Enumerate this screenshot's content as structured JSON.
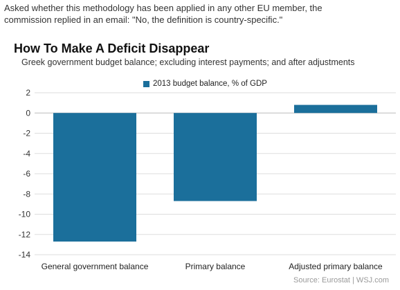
{
  "intro": {
    "line1": "Asked whether this methodology has been applied in any other EU member, the",
    "line2": "commission replied in an email: \"No, the definition is country-specific.\""
  },
  "source": "Source: Eurostat | WSJ.com",
  "colors": {
    "bar": "#1b6f9b",
    "grid": "#dddddd",
    "zero_line": "#bbbbbb"
  },
  "chart_data": {
    "type": "bar",
    "title": "How To Make A Deficit Disappear",
    "subtitle": "Greek government budget balance; excluding interest payments; and after adjustments",
    "categories": [
      "General government balance",
      "Primary balance",
      "Adjusted primary balance"
    ],
    "series": [
      {
        "name": "2013 budget balance, % of GDP",
        "values": [
          -12.7,
          -8.7,
          0.8
        ]
      }
    ],
    "ylim": [
      -14,
      2
    ],
    "yticks": [
      2,
      0,
      -2,
      -4,
      -6,
      -8,
      -10,
      -12,
      -14
    ],
    "xlabel": "",
    "ylabel": "",
    "grid": true,
    "legend": "top"
  }
}
